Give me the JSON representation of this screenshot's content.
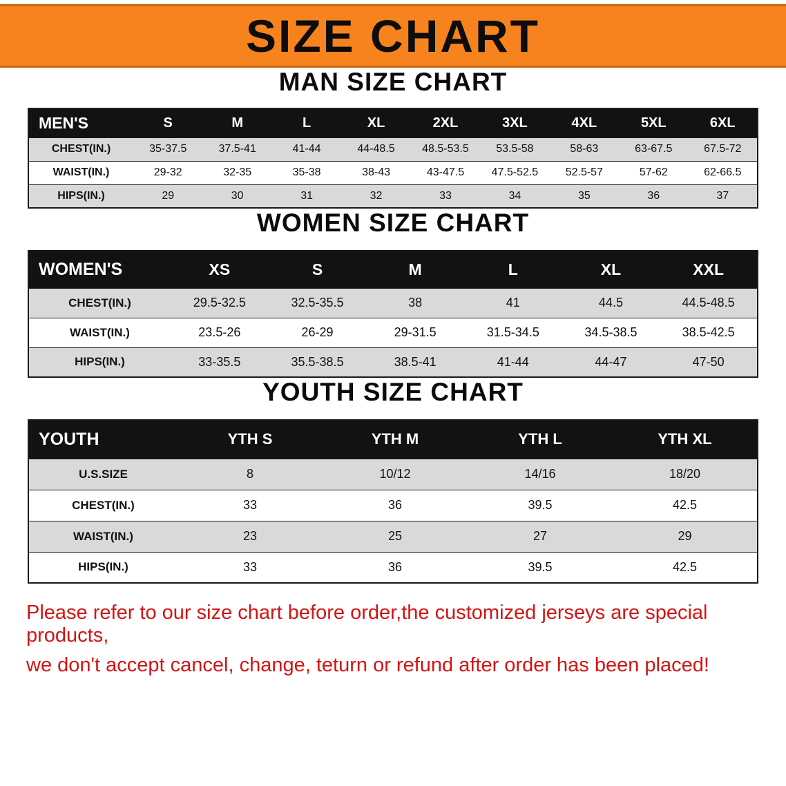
{
  "banner": {
    "title": "SIZE CHART"
  },
  "men": {
    "heading": "MAN SIZE CHART",
    "table": {
      "header": [
        "MEN'S",
        "S",
        "M",
        "L",
        "XL",
        "2XL",
        "3XL",
        "4XL",
        "5XL",
        "6XL"
      ],
      "rows": [
        [
          "CHEST(IN.)",
          "35-37.5",
          "37.5-41",
          "41-44",
          "44-48.5",
          "48.5-53.5",
          "53.5-58",
          "58-63",
          "63-67.5",
          "67.5-72"
        ],
        [
          "WAIST(IN.)",
          "29-32",
          "32-35",
          "35-38",
          "38-43",
          "43-47.5",
          "47.5-52.5",
          "52.5-57",
          "57-62",
          "62-66.5"
        ],
        [
          "HIPS(IN.)",
          "29",
          "30",
          "31",
          "32",
          "33",
          "34",
          "35",
          "36",
          "37"
        ]
      ]
    }
  },
  "women": {
    "heading": "WOMEN SIZE CHART",
    "table": {
      "header": [
        "WOMEN'S",
        "XS",
        "S",
        "M",
        "L",
        "XL",
        "XXL"
      ],
      "rows": [
        [
          "CHEST(IN.)",
          "29.5-32.5",
          "32.5-35.5",
          "38",
          "41",
          "44.5",
          "44.5-48.5"
        ],
        [
          "WAIST(IN.)",
          "23.5-26",
          "26-29",
          "29-31.5",
          "31.5-34.5",
          "34.5-38.5",
          "38.5-42.5"
        ],
        [
          "HIPS(IN.)",
          "33-35.5",
          "35.5-38.5",
          "38.5-41",
          "41-44",
          "44-47",
          "47-50"
        ]
      ]
    }
  },
  "youth": {
    "heading": "YOUTH SIZE CHART",
    "table": {
      "header": [
        "YOUTH",
        "YTH S",
        "YTH M",
        "YTH L",
        "YTH XL"
      ],
      "rows": [
        [
          "U.S.SIZE",
          "8",
          "10/12",
          "14/16",
          "18/20"
        ],
        [
          "CHEST(IN.)",
          "33",
          "36",
          "39.5",
          "42.5"
        ],
        [
          "WAIST(IN.)",
          "23",
          "25",
          "27",
          "29"
        ],
        [
          "HIPS(IN.)",
          "33",
          "36",
          "39.5",
          "42.5"
        ]
      ]
    }
  },
  "footer": {
    "line1": "Please refer to our size chart before order,the customized jerseys are special products,",
    "line2": "we don't accept cancel, change, teturn or refund after order has been placed!"
  },
  "colors": {
    "banner_bg": "#f6831d",
    "header_bg": "#121212",
    "row_alt": "#d9d9d9",
    "footer_text": "#d41414"
  }
}
